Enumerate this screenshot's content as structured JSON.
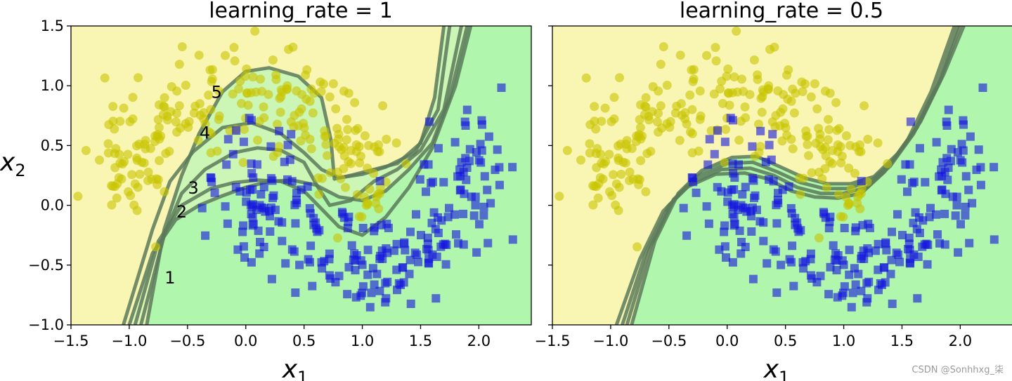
{
  "chart_data": [
    {
      "type": "scatter",
      "title": "learning_rate = 1",
      "xlabel": "x",
      "xlabel_sub": "1",
      "ylabel": "x",
      "ylabel_sub": "2",
      "xlim": [
        -1.5,
        2.45
      ],
      "ylim": [
        -1.0,
        1.5
      ],
      "x_ticks": [
        "−1.5",
        "−1.0",
        "−0.5",
        "0.0",
        "0.5",
        "1.0",
        "1.5",
        "2.0"
      ],
      "y_ticks": [
        "−1.0",
        "−0.5",
        "0.0",
        "0.5",
        "1.0",
        "1.5"
      ],
      "colors": {
        "region_yellow": "#f9f6b3",
        "region_green": "#b0f6ad",
        "class_yellow": "#c8c400",
        "class_blue": "#1414e0",
        "boundary": "#5a7a5a"
      },
      "iteration_labels": [
        {
          "text": "1",
          "x": -0.65,
          "y": -0.6
        },
        {
          "text": "2",
          "x": -0.55,
          "y": -0.05
        },
        {
          "text": "3",
          "x": -0.45,
          "y": 0.15
        },
        {
          "text": "4",
          "x": -0.35,
          "y": 0.61
        },
        {
          "text": "5",
          "x": -0.25,
          "y": 0.95
        }
      ],
      "boundaries": [
        [
          [
            -1.0,
            -1.0
          ],
          [
            -0.8,
            -0.4
          ],
          [
            -0.6,
            -0.12
          ],
          [
            -0.4,
            0.0
          ],
          [
            -0.2,
            0.08
          ],
          [
            0.0,
            0.15
          ],
          [
            0.2,
            0.2
          ],
          [
            0.4,
            0.21
          ],
          [
            0.6,
            0.17
          ],
          [
            0.8,
            0.07
          ],
          [
            1.0,
            0.04
          ],
          [
            1.2,
            0.12
          ],
          [
            1.4,
            0.3
          ],
          [
            1.6,
            0.52
          ],
          [
            1.75,
            0.9
          ],
          [
            1.9,
            1.5
          ]
        ],
        [
          [
            -0.95,
            -1.0
          ],
          [
            -0.75,
            -0.3
          ],
          [
            -0.55,
            0.0
          ],
          [
            -0.3,
            0.14
          ],
          [
            -0.1,
            0.19
          ],
          [
            0.1,
            0.21
          ],
          [
            0.3,
            0.2
          ],
          [
            0.5,
            0.12
          ],
          [
            0.65,
            -0.03
          ],
          [
            0.8,
            -0.18
          ],
          [
            1.0,
            -0.25
          ],
          [
            1.2,
            -0.1
          ],
          [
            1.4,
            0.15
          ],
          [
            1.6,
            0.48
          ],
          [
            1.8,
            1.0
          ],
          [
            1.93,
            1.5
          ]
        ],
        [
          [
            -0.9,
            -1.0
          ],
          [
            -0.7,
            -0.25
          ],
          [
            -0.55,
            0.1
          ],
          [
            -0.35,
            0.3
          ],
          [
            -0.1,
            0.44
          ],
          [
            0.1,
            0.48
          ],
          [
            0.3,
            0.46
          ],
          [
            0.5,
            0.36
          ],
          [
            0.62,
            0.15
          ],
          [
            0.72,
            0.0
          ],
          [
            0.9,
            0.04
          ],
          [
            1.1,
            0.2
          ],
          [
            1.3,
            0.3
          ],
          [
            1.5,
            0.46
          ],
          [
            1.7,
            0.8
          ],
          [
            1.85,
            1.5
          ]
        ],
        [
          [
            -1.05,
            -1.0
          ],
          [
            -0.8,
            -0.2
          ],
          [
            -0.65,
            0.2
          ],
          [
            -0.45,
            0.45
          ],
          [
            -0.2,
            0.65
          ],
          [
            0.05,
            0.69
          ],
          [
            0.3,
            0.6
          ],
          [
            0.5,
            0.44
          ],
          [
            0.65,
            0.3
          ],
          [
            0.8,
            0.23
          ],
          [
            1.0,
            0.26
          ],
          [
            1.2,
            0.32
          ],
          [
            1.45,
            0.44
          ],
          [
            1.65,
            0.8
          ],
          [
            1.75,
            1.5
          ]
        ],
        [
          [
            -0.85,
            -1.0
          ],
          [
            -0.7,
            -0.2
          ],
          [
            -0.55,
            0.25
          ],
          [
            -0.4,
            0.6
          ],
          [
            -0.2,
            0.95
          ],
          [
            0.0,
            1.12
          ],
          [
            0.2,
            1.15
          ],
          [
            0.45,
            1.08
          ],
          [
            0.65,
            0.9
          ],
          [
            0.73,
            0.55
          ],
          [
            0.76,
            0.22
          ],
          [
            0.9,
            0.25
          ],
          [
            1.1,
            0.3
          ],
          [
            1.3,
            0.35
          ],
          [
            1.5,
            0.52
          ],
          [
            1.62,
            0.9
          ],
          [
            1.7,
            1.5
          ]
        ]
      ]
    },
    {
      "type": "scatter",
      "title": "learning_rate = 0.5",
      "xlabel": "x",
      "xlabel_sub": "1",
      "xlim": [
        -1.5,
        2.45
      ],
      "ylim": [
        -1.0,
        1.5
      ],
      "x_ticks": [
        "−1.5",
        "−1.0",
        "−0.5",
        "0.0",
        "0.5",
        "1.0",
        "1.5",
        "2.0"
      ],
      "colors": {
        "region_yellow": "#f9f6b3",
        "region_green": "#b0f6ad",
        "class_yellow": "#c8c400",
        "class_blue": "#1414e0",
        "boundary": "#5a7a5a"
      },
      "boundaries": [
        [
          [
            -0.95,
            -1.0
          ],
          [
            -0.75,
            -0.45
          ],
          [
            -0.55,
            -0.05
          ],
          [
            -0.35,
            0.15
          ],
          [
            -0.1,
            0.26
          ],
          [
            0.15,
            0.27
          ],
          [
            0.35,
            0.22
          ],
          [
            0.55,
            0.12
          ],
          [
            0.75,
            0.07
          ],
          [
            0.95,
            0.06
          ],
          [
            1.15,
            0.1
          ],
          [
            1.35,
            0.28
          ],
          [
            1.55,
            0.55
          ],
          [
            1.75,
            0.95
          ],
          [
            1.95,
            1.5
          ]
        ],
        [
          [
            -0.9,
            -1.0
          ],
          [
            -0.7,
            -0.4
          ],
          [
            -0.5,
            0.0
          ],
          [
            -0.3,
            0.19
          ],
          [
            -0.05,
            0.3
          ],
          [
            0.2,
            0.31
          ],
          [
            0.4,
            0.25
          ],
          [
            0.6,
            0.15
          ],
          [
            0.8,
            0.1
          ],
          [
            1.0,
            0.1
          ],
          [
            1.2,
            0.15
          ],
          [
            1.4,
            0.33
          ],
          [
            1.6,
            0.6
          ],
          [
            1.8,
            1.0
          ],
          [
            1.98,
            1.5
          ]
        ],
        [
          [
            -0.86,
            -1.0
          ],
          [
            -0.66,
            -0.35
          ],
          [
            -0.46,
            0.05
          ],
          [
            -0.26,
            0.24
          ],
          [
            0.0,
            0.35
          ],
          [
            0.22,
            0.36
          ],
          [
            0.43,
            0.28
          ],
          [
            0.63,
            0.19
          ],
          [
            0.83,
            0.14
          ],
          [
            1.03,
            0.14
          ],
          [
            1.23,
            0.2
          ],
          [
            1.43,
            0.38
          ],
          [
            1.63,
            0.65
          ],
          [
            1.83,
            1.05
          ],
          [
            2.0,
            1.5
          ]
        ],
        [
          [
            -0.82,
            -1.0
          ],
          [
            -0.62,
            -0.3
          ],
          [
            -0.42,
            0.1
          ],
          [
            -0.22,
            0.29
          ],
          [
            0.04,
            0.4
          ],
          [
            0.25,
            0.41
          ],
          [
            0.46,
            0.32
          ],
          [
            0.66,
            0.23
          ],
          [
            0.86,
            0.18
          ],
          [
            1.06,
            0.18
          ],
          [
            1.26,
            0.24
          ],
          [
            1.46,
            0.43
          ],
          [
            1.66,
            0.7
          ],
          [
            1.86,
            1.1
          ],
          [
            2.03,
            1.5
          ]
        ]
      ]
    }
  ],
  "watermark": "CSDN @Sonhhxg_柒"
}
